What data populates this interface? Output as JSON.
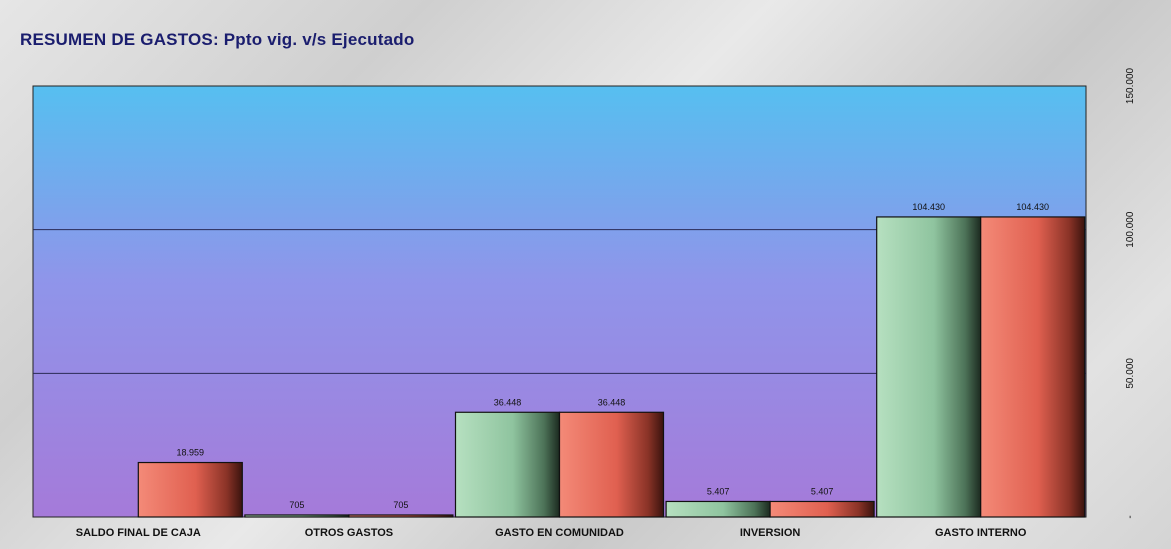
{
  "title": "RESUMEN DE GASTOS: Ppto vig. v/s Ejecutado",
  "chart_data": {
    "type": "bar",
    "categories": [
      "SALDO FINAL DE CAJA",
      "OTROS GASTOS",
      "GASTO EN COMUNIDAD",
      "INVERSION",
      "GASTO INTERNO"
    ],
    "series": [
      {
        "values": [
          0,
          705,
          36448,
          5407,
          104430
        ],
        "labels": [
          "",
          "705",
          "36.448",
          "5.407",
          "104.430"
        ],
        "color": "#8fc7a2"
      },
      {
        "values": [
          18959,
          705,
          36448,
          5407,
          104430
        ],
        "labels": [
          "18.959",
          "705",
          "36.448",
          "5.407",
          "104.430"
        ],
        "color": "#f0705e"
      }
    ],
    "ylim": [
      0,
      150000
    ],
    "yticks": [
      0,
      50000,
      100000,
      150000
    ],
    "ytick_labels": [
      "-",
      "50.000",
      "100.000",
      "150.000"
    ],
    "y_axis_side": "right",
    "grid": true,
    "legend": "none"
  }
}
